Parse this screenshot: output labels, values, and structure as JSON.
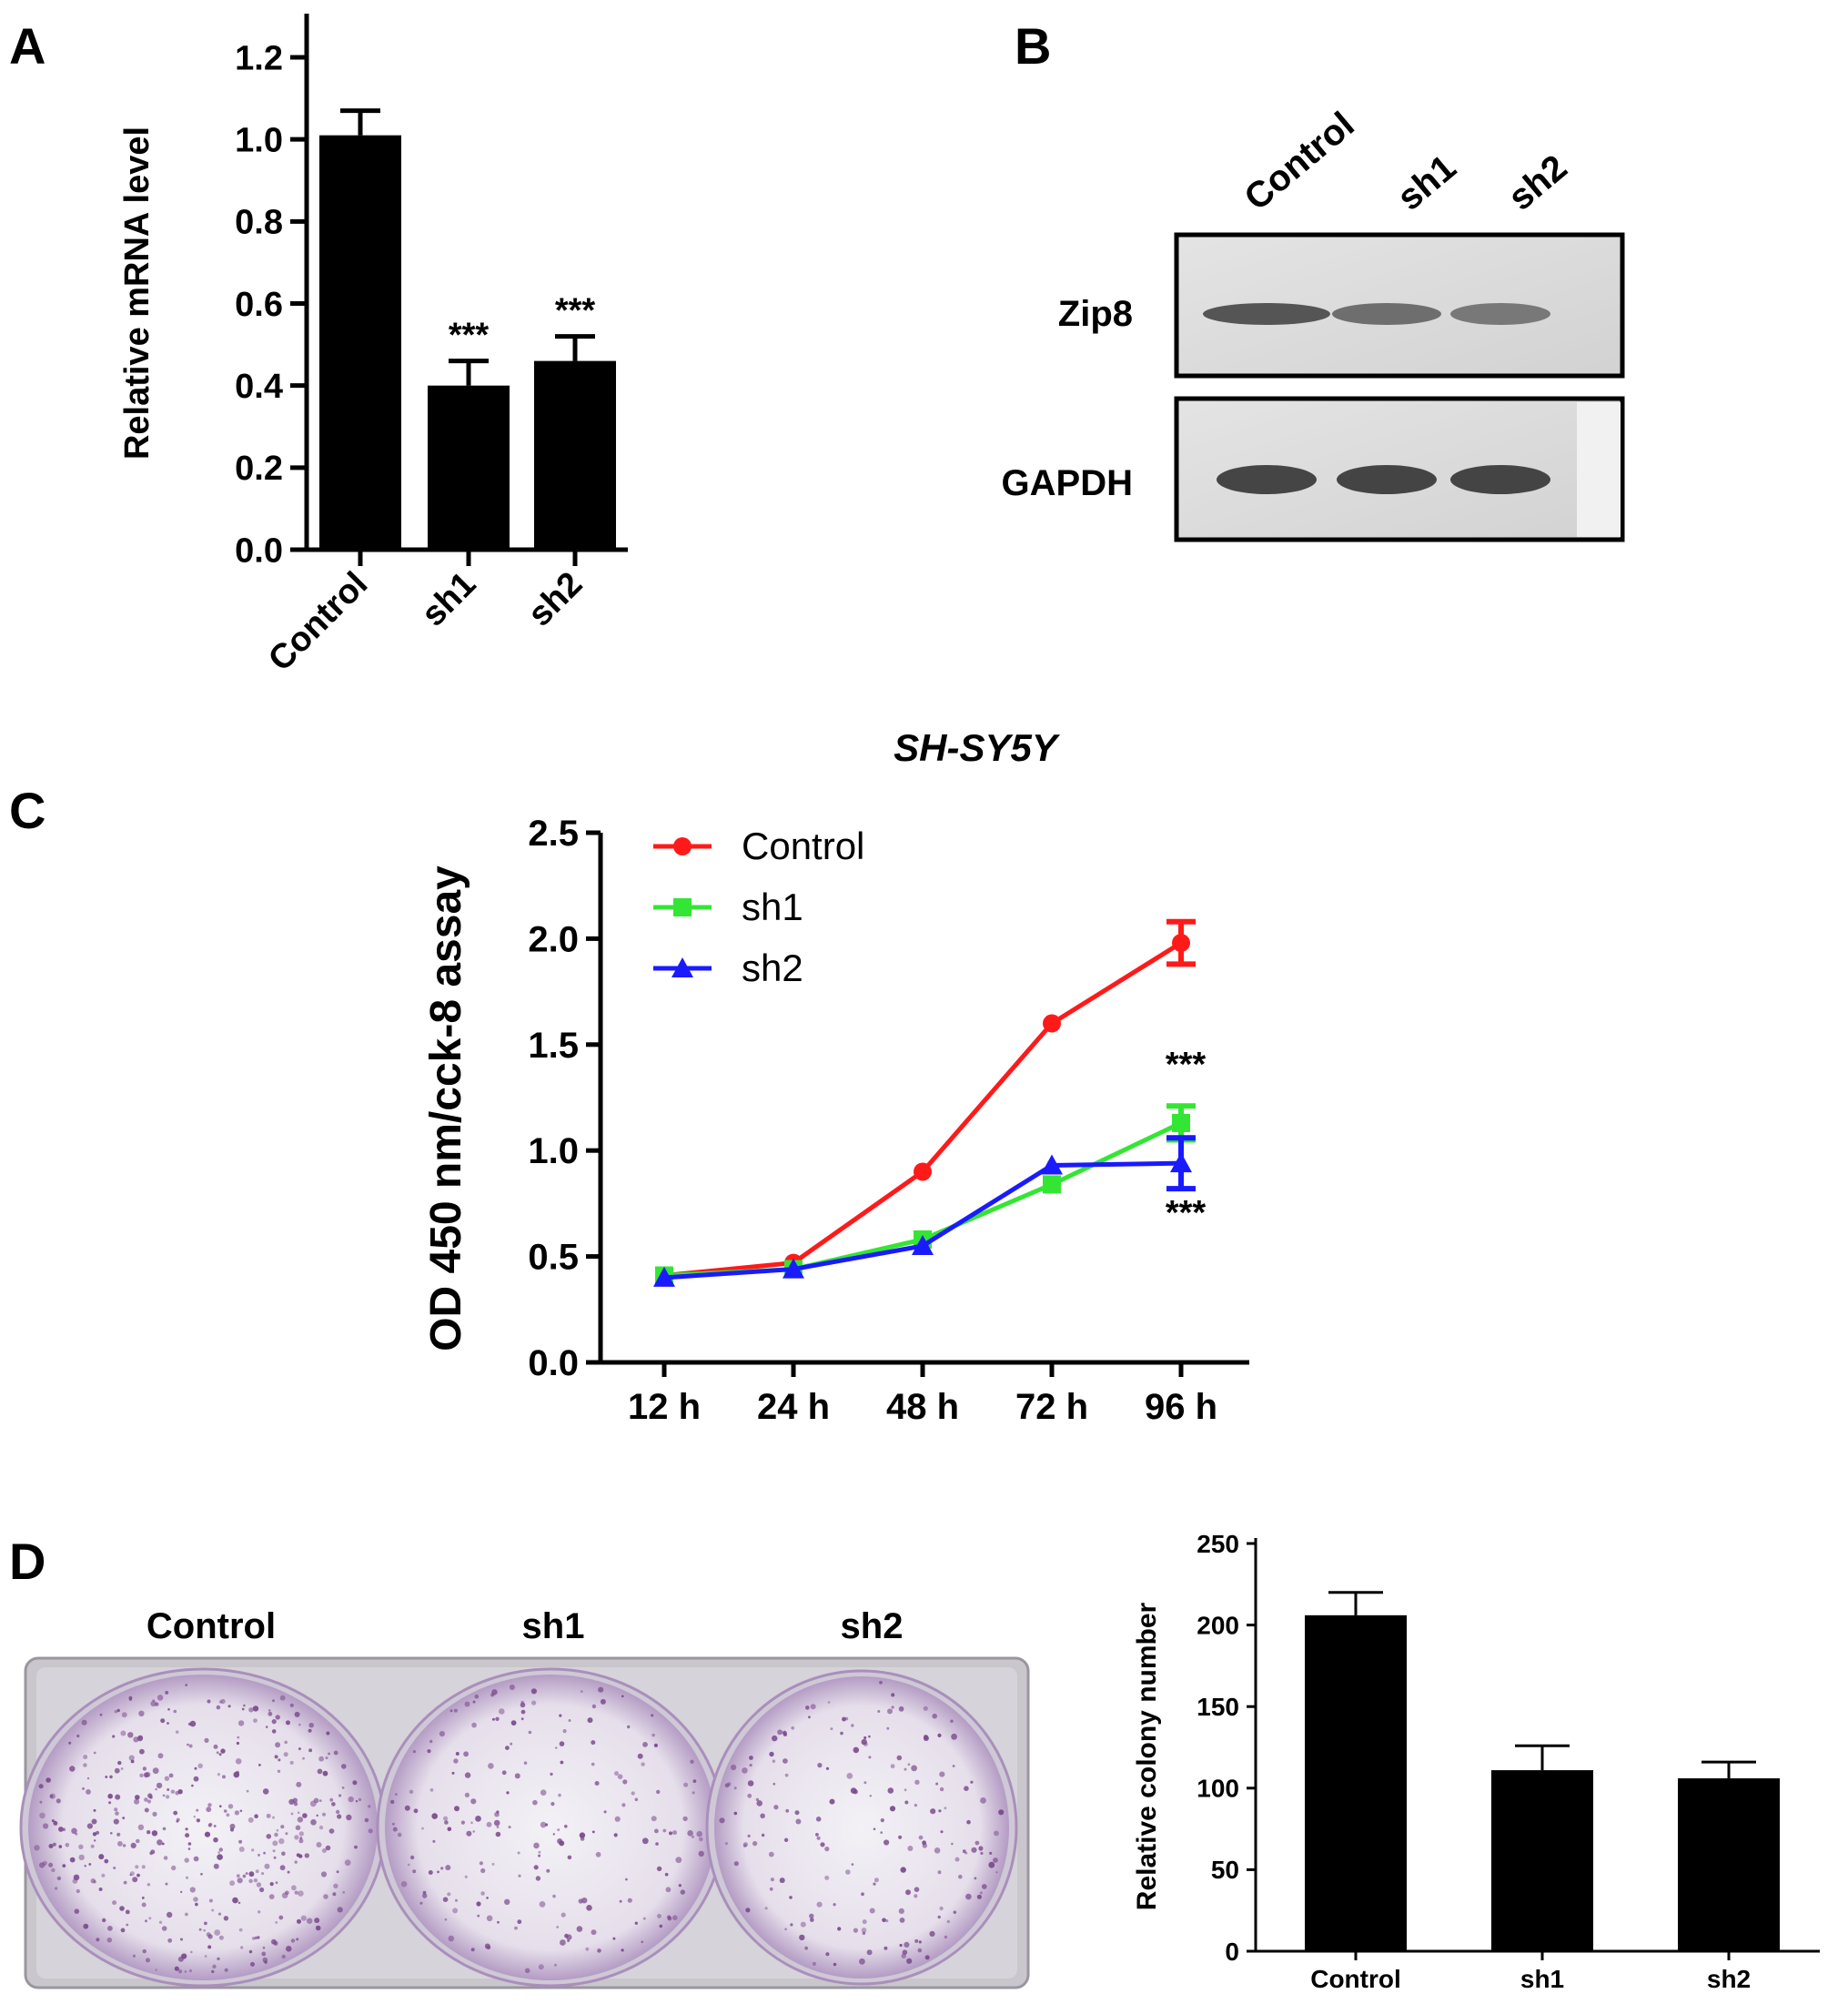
{
  "panels": {
    "a": "A",
    "b": "B",
    "c": "C",
    "d": "D"
  },
  "blot": {
    "lanes": [
      "Control",
      "sh1",
      "sh2"
    ],
    "rows": [
      {
        "label": "Zip8",
        "intensities": [
          0.85,
          0.6,
          0.5
        ]
      },
      {
        "label": "GAPDH",
        "intensities": [
          1.0,
          1.0,
          1.0
        ]
      }
    ]
  },
  "dish": {
    "labels": [
      "Control",
      "sh1",
      "sh2"
    ],
    "colony_density": [
      1.0,
      0.5,
      0.45
    ],
    "stain_color": "#7a4a8c"
  },
  "colors": {
    "bar": "#000000",
    "control": "#ff1a1a",
    "sh1": "#33e633",
    "sh2": "#1a1aff"
  },
  "chart_data": [
    {
      "panel": "A",
      "type": "bar",
      "categories": [
        "Control",
        "sh1",
        "sh2"
      ],
      "values": [
        1.01,
        0.4,
        0.46
      ],
      "errors": [
        0.06,
        0.06,
        0.06
      ],
      "annotations": [
        "",
        "***",
        "***"
      ],
      "title": "",
      "xlabel": "",
      "ylabel": "Relative mRNA level",
      "ylim": [
        0,
        1.2
      ],
      "yticks": [
        "0.0",
        "0.2",
        "0.4",
        "0.6",
        "0.8",
        "1.0",
        "1.2"
      ]
    },
    {
      "panel": "C",
      "type": "line",
      "title": "SH-SY5Y",
      "xlabel": "",
      "ylabel": "OD 450 nm/cck-8 assay",
      "categories": [
        "12 h",
        "24 h",
        "48 h",
        "72 h",
        "96 h"
      ],
      "ylim": [
        0,
        2.5
      ],
      "yticks": [
        "0.0",
        "0.5",
        "1.0",
        "1.5",
        "2.0",
        "2.5"
      ],
      "legend_position": "top-left",
      "series": [
        {
          "name": "Control",
          "marker": "circle",
          "values": [
            0.41,
            0.47,
            0.9,
            1.6,
            1.98
          ],
          "errors": [
            0.0,
            0.0,
            0.0,
            0.0,
            0.1
          ]
        },
        {
          "name": "sh1",
          "marker": "square",
          "values": [
            0.41,
            0.44,
            0.58,
            0.84,
            1.13
          ],
          "errors": [
            0.0,
            0.0,
            0.0,
            0.0,
            0.08
          ]
        },
        {
          "name": "sh2",
          "marker": "triangle",
          "values": [
            0.4,
            0.44,
            0.55,
            0.93,
            0.94
          ],
          "errors": [
            0.0,
            0.0,
            0.0,
            0.0,
            0.12
          ]
        }
      ],
      "annotations": [
        "***",
        "***"
      ]
    },
    {
      "panel": "D",
      "type": "bar",
      "categories": [
        "Control",
        "sh1",
        "sh2"
      ],
      "values": [
        206,
        111,
        106
      ],
      "errors": [
        14,
        15,
        10
      ],
      "title": "",
      "xlabel": "",
      "ylabel": "Relative colony number",
      "ylim": [
        0,
        250
      ],
      "yticks": [
        "0",
        "50",
        "100",
        "150",
        "200",
        "250"
      ]
    }
  ]
}
